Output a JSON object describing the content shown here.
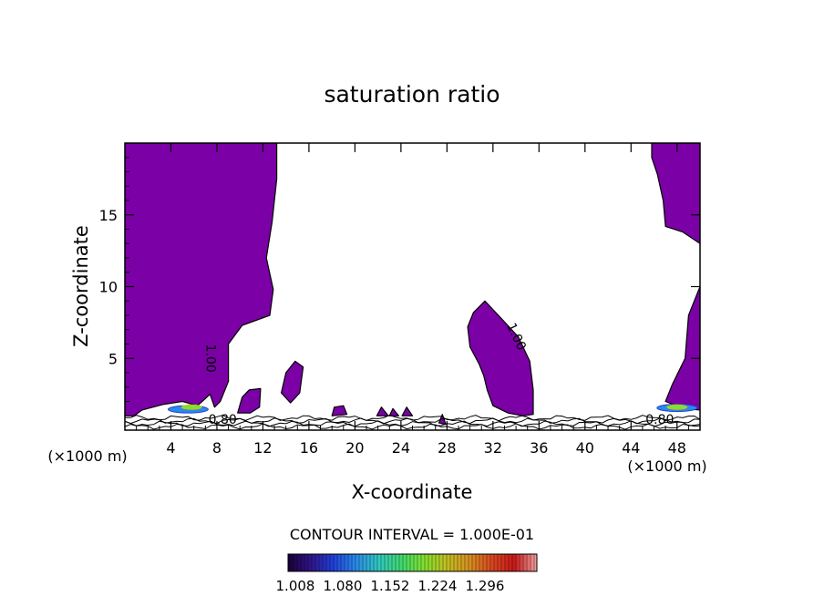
{
  "chart_data": {
    "type": "contour",
    "title": "saturation ratio",
    "xlabel": "X-coordinate",
    "ylabel": "Z-coordinate",
    "x_unit_left": "(×1000 m)",
    "x_unit_right": "(×1000 m)",
    "xlim": [
      0,
      50
    ],
    "ylim": [
      0,
      20
    ],
    "x_ticks": [
      4,
      8,
      12,
      16,
      20,
      24,
      28,
      32,
      36,
      40,
      44,
      48
    ],
    "y_ticks": [
      5,
      10,
      15
    ],
    "contour_interval_text": "CONTOUR INTERVAL = 1.000E-01",
    "contour_labels": [
      {
        "text": "1.00",
        "x": 7.4,
        "z": 5.0,
        "angle": 90
      },
      {
        "text": "1.00",
        "x": 34.0,
        "z": 6.5,
        "angle": 65
      },
      {
        "text": "0.80",
        "x": 8.5,
        "z": 0.7,
        "angle": 0
      },
      {
        "text": "0.80",
        "x": 46.5,
        "z": 0.7,
        "angle": 0
      }
    ],
    "supersaturated_regions": [
      {
        "name": "left-region",
        "points": [
          [
            0,
            20
          ],
          [
            13.2,
            20
          ],
          [
            13.2,
            17.5
          ],
          [
            12.8,
            14.5
          ],
          [
            12.3,
            12.0
          ],
          [
            12.9,
            9.8
          ],
          [
            12.6,
            8.0
          ],
          [
            10.2,
            7.3
          ],
          [
            9.0,
            6.0
          ],
          [
            9.0,
            3.4
          ],
          [
            8.3,
            2.0
          ],
          [
            7.8,
            1.6
          ],
          [
            7.4,
            2.5
          ],
          [
            7.0,
            2.2
          ],
          [
            6.3,
            1.7
          ],
          [
            5.0,
            2.0
          ],
          [
            3.4,
            1.8
          ],
          [
            1.5,
            1.4
          ],
          [
            0.8,
            1.0
          ],
          [
            0,
            1.0
          ]
        ]
      },
      {
        "name": "right-region",
        "points": [
          [
            45.8,
            20
          ],
          [
            50,
            20
          ],
          [
            50,
            13.0
          ],
          [
            48.5,
            13.8
          ],
          [
            47.0,
            14.2
          ],
          [
            46.8,
            16.0
          ],
          [
            46.3,
            17.8
          ],
          [
            45.8,
            19.0
          ]
        ]
      },
      {
        "name": "right-lower-region",
        "points": [
          [
            50,
            10.0
          ],
          [
            49.0,
            8.0
          ],
          [
            48.7,
            5.0
          ],
          [
            47.6,
            3.2
          ],
          [
            47.0,
            2.0
          ],
          [
            48.6,
            1.5
          ],
          [
            50,
            1.4
          ]
        ]
      },
      {
        "name": "middle-region",
        "points": [
          [
            30.3,
            8.2
          ],
          [
            31.3,
            9.0
          ],
          [
            32.7,
            7.8
          ],
          [
            34.2,
            6.5
          ],
          [
            35.2,
            4.8
          ],
          [
            35.5,
            2.8
          ],
          [
            35.5,
            1.1
          ],
          [
            34.6,
            1.0
          ],
          [
            33.3,
            1.2
          ],
          [
            32.0,
            1.7
          ],
          [
            31.5,
            2.8
          ],
          [
            31.2,
            3.8
          ],
          [
            30.8,
            4.6
          ],
          [
            30.0,
            5.8
          ],
          [
            29.8,
            7.2
          ]
        ]
      },
      {
        "name": "patch-1",
        "points": [
          [
            13.6,
            2.6
          ],
          [
            14.0,
            4.0
          ],
          [
            14.8,
            4.8
          ],
          [
            15.5,
            4.4
          ],
          [
            15.2,
            2.6
          ],
          [
            14.4,
            1.9
          ]
        ]
      },
      {
        "name": "patch-2",
        "points": [
          [
            9.8,
            1.2
          ],
          [
            10.2,
            2.3
          ],
          [
            10.8,
            2.8
          ],
          [
            11.8,
            2.9
          ],
          [
            11.7,
            1.6
          ],
          [
            10.9,
            1.2
          ]
        ]
      },
      {
        "name": "patch-3",
        "points": [
          [
            18.0,
            1.0
          ],
          [
            18.2,
            1.6
          ],
          [
            19.0,
            1.7
          ],
          [
            19.3,
            1.1
          ]
        ]
      },
      {
        "name": "patch-4",
        "points": [
          [
            21.9,
            1.0
          ],
          [
            22.3,
            1.6
          ],
          [
            22.9,
            1.0
          ]
        ]
      },
      {
        "name": "patch-5",
        "points": [
          [
            23.0,
            1.0
          ],
          [
            23.3,
            1.5
          ],
          [
            23.8,
            1.0
          ]
        ]
      },
      {
        "name": "patch-6",
        "points": [
          [
            24.1,
            1.0
          ],
          [
            24.5,
            1.6
          ],
          [
            25.0,
            1.0
          ]
        ]
      },
      {
        "name": "patch-7",
        "points": [
          [
            27.3,
            0.5
          ],
          [
            27.6,
            1.1
          ],
          [
            27.9,
            0.4
          ]
        ]
      }
    ],
    "highs": [
      {
        "x": 5.5,
        "z": 1.45,
        "level": 1.08
      },
      {
        "x": 5.8,
        "z": 1.6,
        "level": 1.15
      },
      {
        "x": 48.0,
        "z": 1.55,
        "level": 1.08
      },
      {
        "x": 48.0,
        "z": 1.6,
        "level": 1.15
      }
    ],
    "colorbar": {
      "ticks": [
        "1.008",
        "1.080",
        "1.152",
        "1.224",
        "1.296"
      ],
      "colors": [
        "#1a0038",
        "#301488",
        "#2040d8",
        "#2a8ae8",
        "#30c8c0",
        "#40d870",
        "#80e030",
        "#c0c020",
        "#d89020",
        "#d84820",
        "#c81818",
        "#f0a0a0"
      ]
    },
    "colors": {
      "fill_primary": "#7b00a6",
      "lines": "#000000",
      "background": "#ffffff"
    }
  }
}
